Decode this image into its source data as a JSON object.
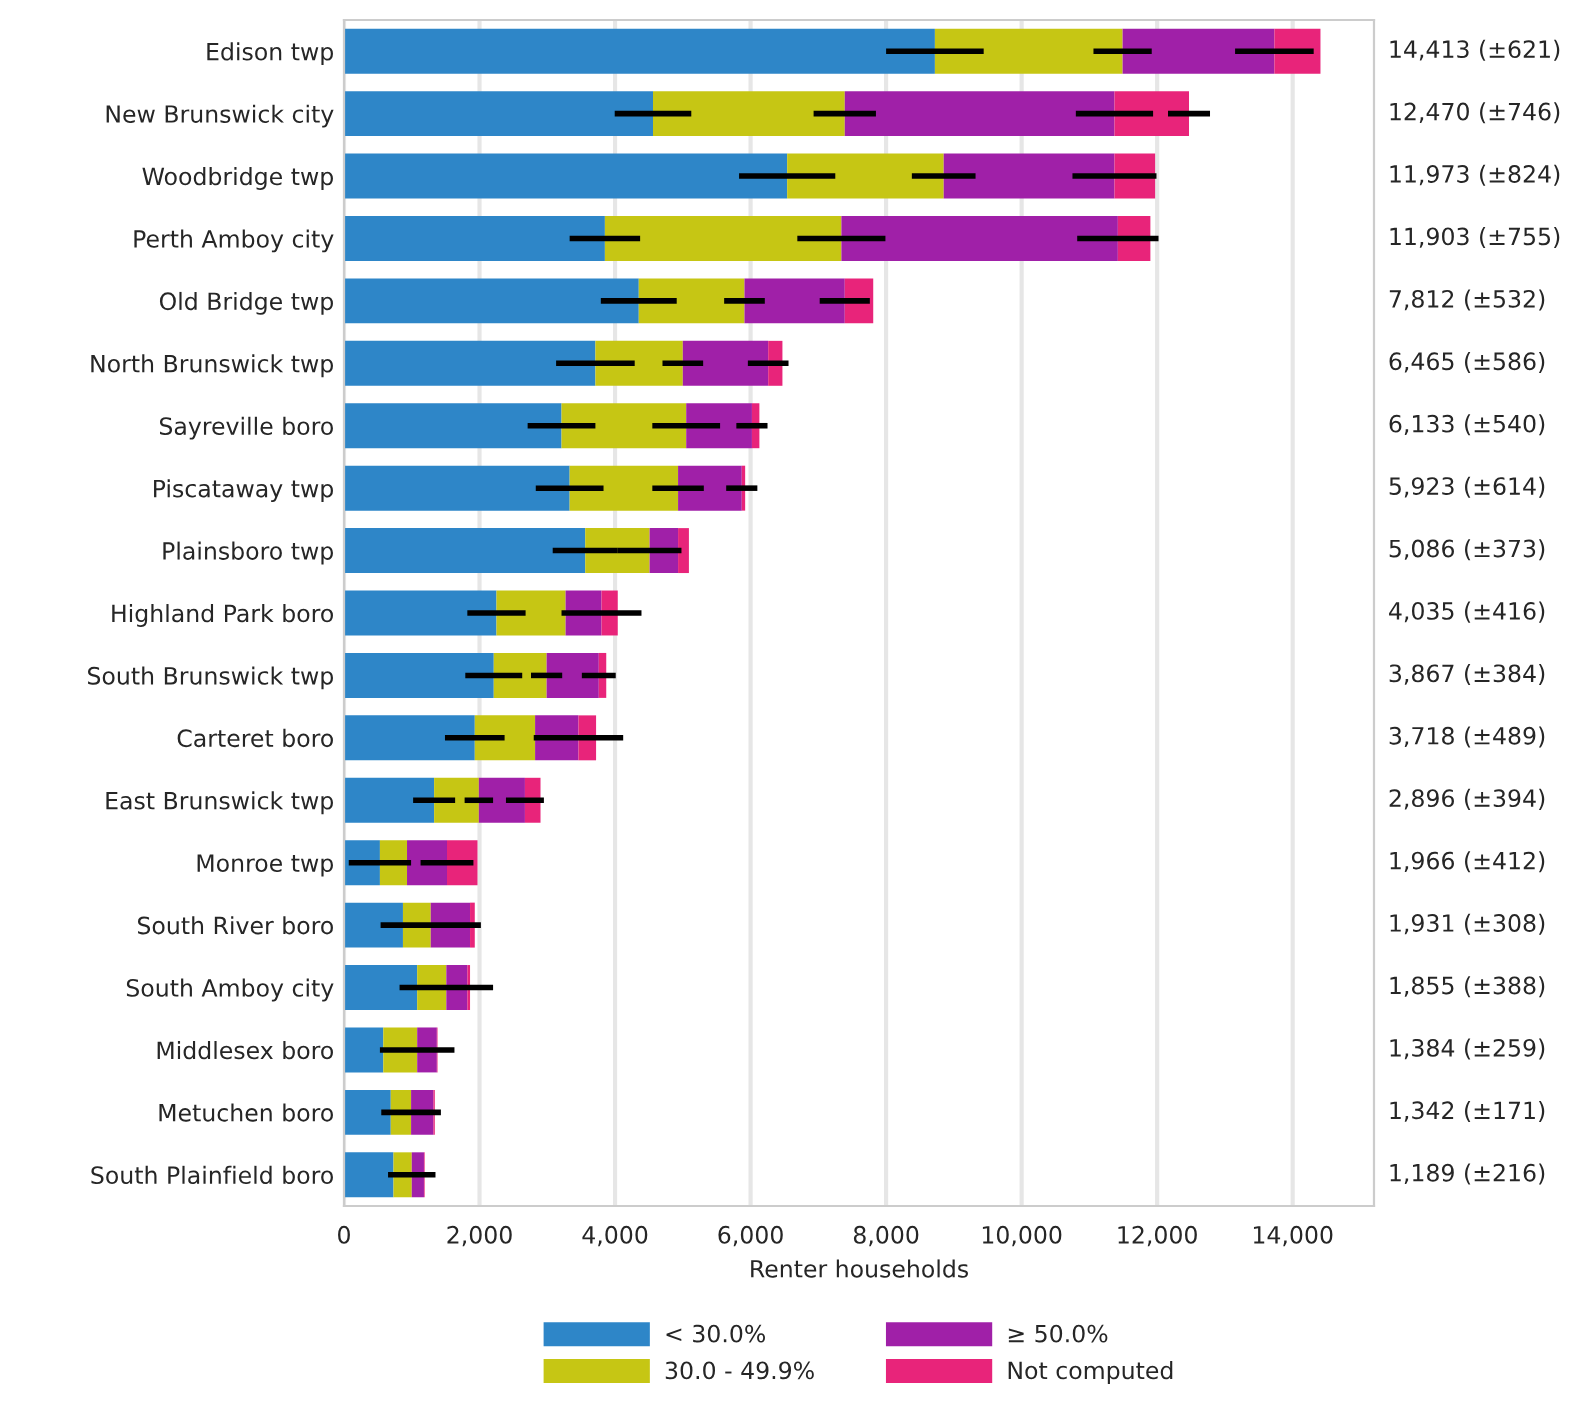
{
  "chart_data": {
    "type": "bar",
    "orientation": "horizontal",
    "stacked": true,
    "xlabel": "Renter households",
    "categories": [
      "Edison twp",
      "New Brunswick city",
      "Woodbridge twp",
      "Perth Amboy city",
      "Old Bridge twp",
      "North Brunswick twp",
      "Sayreville boro",
      "Piscataway twp",
      "Plainsboro twp",
      "Highland Park boro",
      "South Brunswick twp",
      "Carteret boro",
      "East Brunswick twp",
      "Monroe twp",
      "South River boro",
      "South Amboy city",
      "Middlesex boro",
      "Metuchen boro",
      "South Plainfield boro"
    ],
    "series": [
      {
        "name": "< 30.0%",
        "color": "#2e86c8",
        "values": [
          8720,
          4560,
          6540,
          3850,
          4350,
          3710,
          3210,
          3330,
          3560,
          2250,
          2210,
          1930,
          1330,
          530,
          870,
          1080,
          580,
          690,
          730
        ],
        "errors": [
          720,
          565,
          710,
          520,
          560,
          580,
          500,
          500,
          480,
          430,
          420,
          440,
          310,
          460,
          null,
          null,
          null,
          null,
          null
        ]
      },
      {
        "name": "30.0 - 49.9%",
        "color": "#c6c614",
        "values": [
          2770,
          2830,
          2310,
          3490,
          1560,
          1290,
          1840,
          1600,
          950,
          1020,
          780,
          890,
          660,
          400,
          410,
          430,
          500,
          300,
          270
        ],
        "errors": [
          430,
          460,
          470,
          650,
          300,
          300,
          500,
          380,
          470,
          null,
          230,
          null,
          210,
          null,
          740,
          690,
          550,
          440,
          350
        ]
      },
      {
        "name": "≥ 50.0%",
        "color": "#a020a8",
        "values": [
          2240,
          3980,
          2520,
          4080,
          1480,
          1260,
          970,
          940,
          420,
          530,
          770,
          640,
          680,
          590,
          580,
          310,
          290,
          330,
          180
        ],
        "errors": [
          580,
          570,
          620,
          600,
          370,
          300,
          230,
          230,
          null,
          590,
          250,
          660,
          280,
          390,
          null,
          null,
          null,
          null,
          null
        ]
      },
      {
        "name": "Not computed",
        "color": "#e8247a",
        "values": [
          680,
          1100,
          600,
          480,
          420,
          210,
          110,
          50,
          160,
          240,
          110,
          260,
          230,
          450,
          70,
          40,
          10,
          20,
          10
        ],
        "errors": [
          null,
          310,
          null,
          null,
          null,
          null,
          null,
          null,
          null,
          null,
          null,
          null,
          null,
          null,
          null,
          null,
          null,
          null,
          null
        ]
      }
    ],
    "annotations": [
      "14,413 (±621)",
      "12,470 (±746)",
      "11,973 (±824)",
      "11,903 (±755)",
      "7,812 (±532)",
      "6,465 (±586)",
      "6,133 (±540)",
      "5,923 (±614)",
      "5,086 (±373)",
      "4,035 (±416)",
      "3,867 (±384)",
      "3,718 (±489)",
      "2,896 (±394)",
      "1,966 (±412)",
      "1,931 (±308)",
      "1,855 (±388)",
      "1,384 (±259)",
      "1,342 (±171)",
      "1,189 (±216)"
    ],
    "xlim": [
      0,
      15200
    ],
    "xticks": [
      0,
      {
        "value": 2000,
        "label": "2,000"
      },
      {
        "value": 4000,
        "label": "4,000"
      },
      {
        "value": 6000,
        "label": "6,000"
      },
      {
        "value": 8000,
        "label": "8,000"
      },
      {
        "value": 10000,
        "label": "10,000"
      },
      {
        "value": 12000,
        "label": "12,000"
      },
      {
        "value": 14000,
        "label": "14,000"
      }
    ],
    "grid": "x",
    "legend": "bottom"
  }
}
